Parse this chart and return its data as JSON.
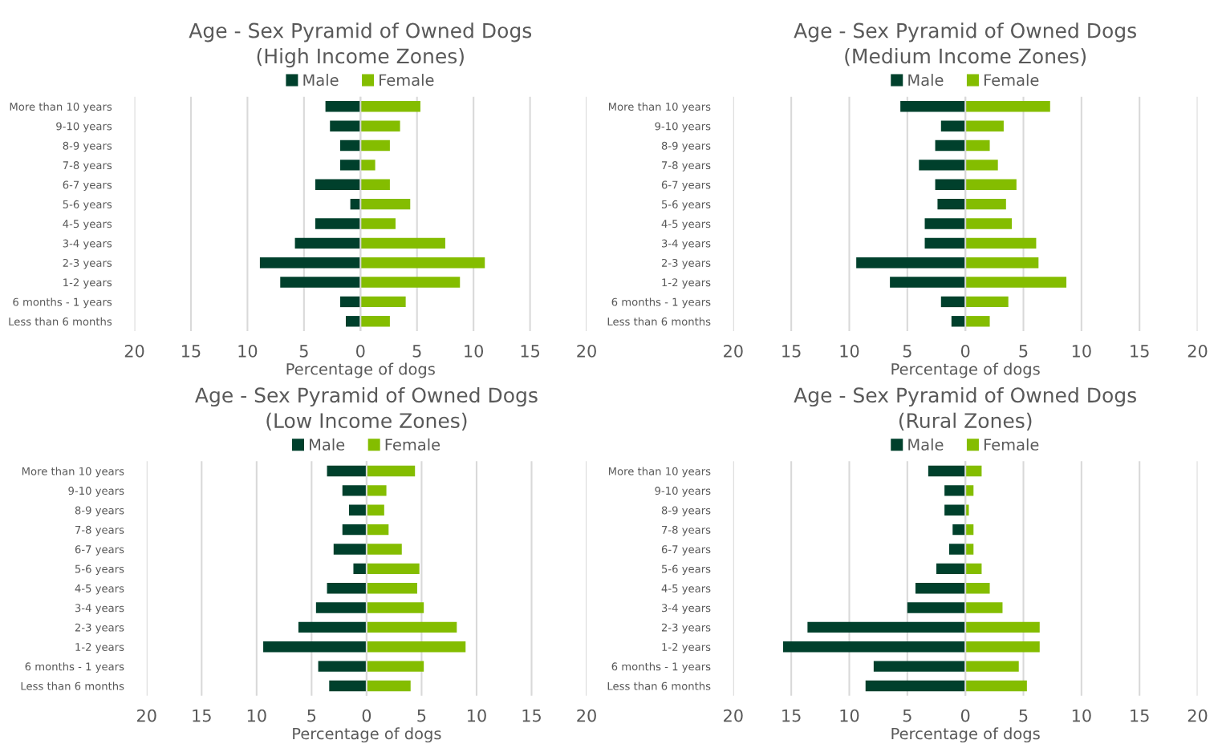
{
  "chart_data": [
    {
      "type": "bar",
      "orientation": "horizontal",
      "stacked": true,
      "title": "Age - Sex Pyramid of Owned Dogs\n(High Income Zones)",
      "xlabel": "Percentage of dogs",
      "legend": "top",
      "grid": "x",
      "categories": [
        "More than 10 years",
        "9-10 years",
        "8-9 years",
        "7-8 years",
        "6-7 years",
        "5-6 years",
        "4-5 years",
        "3-4 years",
        "2-3 years",
        "1-2 years",
        "6 months - 1 years",
        "Less than 6 months"
      ],
      "xlim": [
        -20,
        20
      ],
      "xticks": [
        {
          "value": -20,
          "label": "20"
        },
        {
          "value": -15,
          "label": "15"
        },
        {
          "value": -10,
          "label": "10"
        },
        {
          "value": -5,
          "label": "5"
        },
        0,
        5,
        10,
        15,
        20
      ],
      "series": [
        {
          "name": "Male",
          "color": "#00402c",
          "values": [
            -3.1,
            -2.7,
            -1.8,
            -1.8,
            -4.0,
            -0.9,
            -4.0,
            -5.8,
            -8.9,
            -7.1,
            -1.8,
            -1.3
          ]
        },
        {
          "name": "Female",
          "color": "#84bd00",
          "values": [
            5.3,
            3.5,
            2.6,
            1.3,
            2.6,
            4.4,
            3.1,
            7.5,
            11.0,
            8.8,
            4.0,
            2.6
          ]
        }
      ]
    },
    {
      "type": "bar",
      "orientation": "horizontal",
      "stacked": true,
      "title": "Age - Sex Pyramid of Owned Dogs\n(Medium Income Zones)",
      "xlabel": "Percentage of dogs",
      "legend": "top",
      "grid": "x",
      "categories": [
        "More than 10 years",
        "9-10 years",
        "8-9 years",
        "7-8 years",
        "6-7 years",
        "5-6 years",
        "4-5 years",
        "3-4 years",
        "2-3 years",
        "1-2 years",
        "6 months - 1 years",
        "Less than 6 months"
      ],
      "xlim": [
        -20,
        20
      ],
      "xticks": [
        {
          "value": -20,
          "label": "20"
        },
        {
          "value": -15,
          "label": "15"
        },
        {
          "value": -10,
          "label": "10"
        },
        {
          "value": -5,
          "label": "5"
        },
        0,
        5,
        10,
        15,
        20
      ],
      "series": [
        {
          "name": "Male",
          "color": "#00402c",
          "values": [
            -5.6,
            -2.1,
            -2.6,
            -4.0,
            -2.6,
            -2.4,
            -3.5,
            -3.5,
            -9.4,
            -6.5,
            -2.1,
            -1.2
          ]
        },
        {
          "name": "Female",
          "color": "#84bd00",
          "values": [
            7.3,
            3.3,
            2.1,
            2.8,
            4.4,
            3.5,
            4.0,
            6.1,
            6.3,
            8.7,
            3.7,
            2.1
          ]
        }
      ]
    },
    {
      "type": "bar",
      "orientation": "horizontal",
      "stacked": true,
      "title": "Age - Sex Pyramid of Owned Dogs\n(Low Income Zones)",
      "xlabel": "Percentage of dogs",
      "legend": "top",
      "grid": "x",
      "categories": [
        "More than 10 years",
        "9-10 years",
        "8-9 years",
        "7-8 years",
        "6-7 years",
        "5-6 years",
        "4-5 years",
        "3-4 years",
        "2-3 years",
        "1-2 years",
        "6 months - 1 years",
        "Less than 6 months"
      ],
      "xlim": [
        -20,
        20
      ],
      "xticks": [
        {
          "value": -20,
          "label": "20"
        },
        {
          "value": -15,
          "label": "15"
        },
        {
          "value": -10,
          "label": "10"
        },
        {
          "value": -5,
          "label": "5"
        },
        0,
        5,
        10,
        15,
        20
      ],
      "series": [
        {
          "name": "Male",
          "color": "#00402c",
          "values": [
            -3.6,
            -2.2,
            -1.6,
            -2.2,
            -3.0,
            -1.2,
            -3.6,
            -4.6,
            -6.2,
            -9.4,
            -4.4,
            -3.4
          ]
        },
        {
          "name": "Female",
          "color": "#84bd00",
          "values": [
            4.4,
            1.8,
            1.6,
            2.0,
            3.2,
            4.8,
            4.6,
            5.2,
            8.2,
            9.0,
            5.2,
            4.0
          ]
        }
      ]
    },
    {
      "type": "bar",
      "orientation": "horizontal",
      "stacked": true,
      "title": "Age - Sex Pyramid of Owned Dogs\n(Rural Zones)",
      "xlabel": "Percentage of dogs",
      "legend": "top",
      "grid": "x",
      "categories": [
        "More than 10 years",
        "9-10 years",
        "8-9 years",
        "7-8 years",
        "6-7 years",
        "5-6 years",
        "4-5 years",
        "3-4 years",
        "2-3 years",
        "1-2 years",
        "6 months - 1 years",
        "Less than 6 months"
      ],
      "xlim": [
        -20,
        20
      ],
      "xticks": [
        {
          "value": -20,
          "label": "20"
        },
        {
          "value": -15,
          "label": "15"
        },
        {
          "value": -10,
          "label": "10"
        },
        {
          "value": -5,
          "label": "5"
        },
        0,
        5,
        10,
        15,
        20
      ],
      "series": [
        {
          "name": "Male",
          "color": "#00402c",
          "values": [
            -3.2,
            -1.8,
            -1.8,
            -1.1,
            -1.4,
            -2.5,
            -4.3,
            -5.0,
            -13.6,
            -15.7,
            -7.9,
            -8.6
          ]
        },
        {
          "name": "Female",
          "color": "#84bd00",
          "values": [
            1.4,
            0.7,
            0.3,
            0.7,
            0.7,
            1.4,
            2.1,
            3.2,
            6.4,
            6.4,
            4.6,
            5.3
          ]
        }
      ]
    }
  ]
}
